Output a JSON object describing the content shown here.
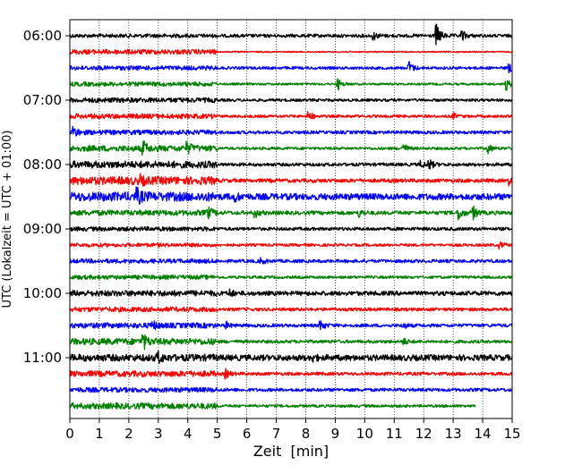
{
  "chart_data": {
    "type": "line",
    "title": "",
    "xlabel": "Zeit  [min]",
    "ylabel": "UTC (Lokalzeit = UTC + 01:00)",
    "xlim": [
      0,
      15
    ],
    "x_ticks": [
      0,
      1,
      2,
      3,
      4,
      5,
      6,
      7,
      8,
      9,
      10,
      11,
      12,
      13,
      14,
      15
    ],
    "y_tick_labels": [
      "06:00",
      "07:00",
      "08:00",
      "09:00",
      "10:00",
      "11:00"
    ],
    "grid": "vertical dotted lines at each minute",
    "trace_interval_minutes": 15,
    "first_trace_start": "06:00",
    "series_colors": [
      "#000000",
      "#ff0000",
      "#0000ff",
      "#008000"
    ],
    "traces": [
      {
        "start": "06:00",
        "noise_before_5": 0.35,
        "noise_after_5": 0.3,
        "end_min": 15,
        "events": [
          [
            10.3,
            0.7
          ],
          [
            12.45,
            1.9
          ],
          [
            13.3,
            0.9
          ]
        ]
      },
      {
        "start": "06:15",
        "noise_before_5": 0.45,
        "noise_after_5": 0.12,
        "end_min": 15,
        "events": []
      },
      {
        "start": "06:30",
        "noise_before_5": 0.4,
        "noise_after_5": 0.25,
        "end_min": 15,
        "events": [
          [
            11.5,
            1.3
          ],
          [
            14.9,
            0.8
          ]
        ]
      },
      {
        "start": "06:45",
        "noise_before_5": 0.4,
        "noise_after_5": 0.2,
        "end_min": 15,
        "events": [
          [
            9.1,
            1.0
          ],
          [
            14.8,
            1.1
          ]
        ]
      },
      {
        "start": "07:00",
        "noise_before_5": 0.45,
        "noise_after_5": 0.25,
        "end_min": 15,
        "events": []
      },
      {
        "start": "07:15",
        "noise_before_5": 0.45,
        "noise_after_5": 0.25,
        "end_min": 15,
        "events": [
          [
            8.1,
            0.9
          ],
          [
            13.0,
            0.5
          ]
        ]
      },
      {
        "start": "07:30",
        "noise_before_5": 0.45,
        "noise_after_5": 0.3,
        "end_min": 15,
        "events": [
          [
            0.1,
            1.0
          ]
        ]
      },
      {
        "start": "07:45",
        "noise_before_5": 0.55,
        "noise_after_5": 0.25,
        "end_min": 15,
        "events": [
          [
            2.5,
            1.1
          ],
          [
            4.0,
            0.8
          ],
          [
            11.3,
            1.0
          ],
          [
            14.2,
            0.8
          ]
        ]
      },
      {
        "start": "08:00",
        "noise_before_5": 0.65,
        "noise_after_5": 0.3,
        "end_min": 15,
        "events": [
          [
            11.9,
            0.6
          ],
          [
            12.2,
            0.8
          ]
        ]
      },
      {
        "start": "08:15",
        "noise_before_5": 0.75,
        "noise_after_5": 0.35,
        "end_min": 15,
        "events": [
          [
            2.4,
            0.6
          ],
          [
            14.9,
            0.7
          ]
        ]
      },
      {
        "start": "08:30",
        "noise_before_5": 0.85,
        "noise_after_5": 0.6,
        "end_min": 15,
        "events": [
          [
            2.3,
            1.0
          ],
          [
            5.6,
            0.6
          ]
        ]
      },
      {
        "start": "08:45",
        "noise_before_5": 0.5,
        "noise_after_5": 0.35,
        "end_min": 15,
        "events": [
          [
            4.7,
            0.8
          ],
          [
            6.3,
            0.7
          ],
          [
            9.8,
            0.7
          ],
          [
            13.2,
            1.2
          ],
          [
            13.7,
            1.0
          ]
        ]
      },
      {
        "start": "09:00",
        "noise_before_5": 0.4,
        "noise_after_5": 0.3,
        "end_min": 15,
        "events": []
      },
      {
        "start": "09:15",
        "noise_before_5": 0.35,
        "noise_after_5": 0.25,
        "end_min": 15,
        "events": [
          [
            14.6,
            0.5
          ]
        ]
      },
      {
        "start": "09:30",
        "noise_before_5": 0.4,
        "noise_after_5": 0.3,
        "end_min": 15,
        "events": [
          [
            6.5,
            0.5
          ]
        ]
      },
      {
        "start": "09:45",
        "noise_before_5": 0.4,
        "noise_after_5": 0.25,
        "end_min": 15,
        "events": []
      },
      {
        "start": "10:00",
        "noise_before_5": 0.55,
        "noise_after_5": 0.4,
        "end_min": 15,
        "events": [
          [
            5.4,
            0.7
          ]
        ]
      },
      {
        "start": "10:15",
        "noise_before_5": 0.45,
        "noise_after_5": 0.3,
        "end_min": 15,
        "events": []
      },
      {
        "start": "10:30",
        "noise_before_5": 0.5,
        "noise_after_5": 0.3,
        "end_min": 15,
        "events": [
          [
            2.8,
            0.7
          ],
          [
            5.3,
            0.6
          ],
          [
            8.5,
            1.0
          ],
          [
            11.3,
            0.6
          ]
        ]
      },
      {
        "start": "10:45",
        "noise_before_5": 0.6,
        "noise_after_5": 0.3,
        "end_min": 15,
        "events": [
          [
            2.5,
            1.2
          ],
          [
            11.3,
            0.7
          ]
        ]
      },
      {
        "start": "11:00",
        "noise_before_5": 0.65,
        "noise_after_5": 0.55,
        "end_min": 15,
        "events": [
          [
            3.0,
            0.8
          ],
          [
            8.2,
            0.6
          ]
        ]
      },
      {
        "start": "11:15",
        "noise_before_5": 0.55,
        "noise_after_5": 0.3,
        "end_min": 15,
        "events": [
          [
            5.3,
            0.7
          ]
        ]
      },
      {
        "start": "11:30",
        "noise_before_5": 0.45,
        "noise_after_5": 0.3,
        "end_min": 15,
        "events": []
      },
      {
        "start": "11:45",
        "noise_before_5": 0.55,
        "noise_after_5": 0.25,
        "end_min": 13.75,
        "events": []
      }
    ]
  }
}
